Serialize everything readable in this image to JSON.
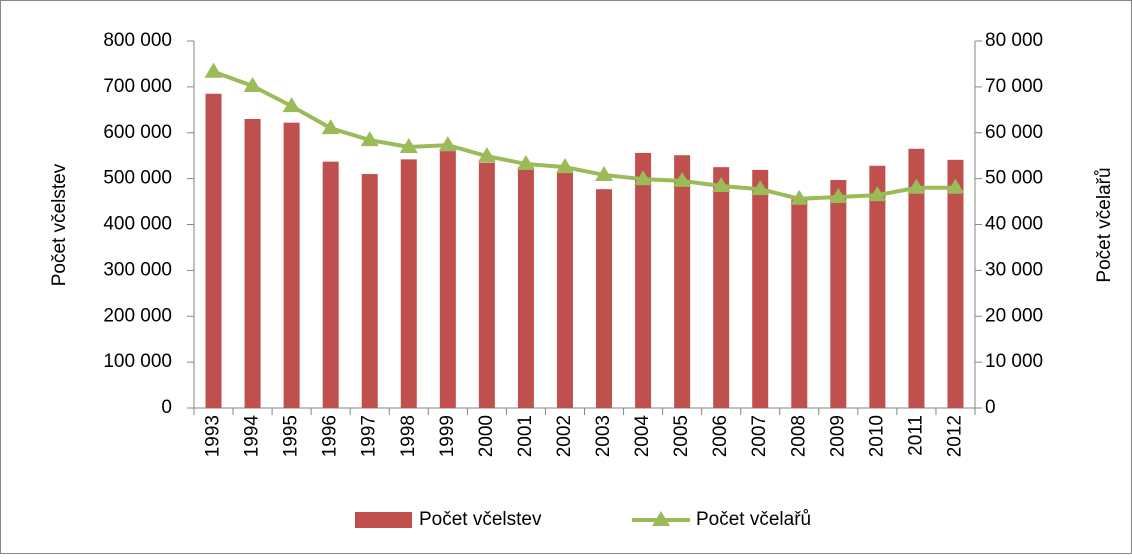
{
  "chart_data": {
    "type": "bar-line",
    "categories": [
      "1993",
      "1994",
      "1995",
      "1996",
      "1997",
      "1998",
      "1999",
      "2000",
      "2001",
      "2002",
      "2003",
      "2004",
      "2005",
      "2006",
      "2007",
      "2008",
      "2009",
      "2010",
      "2011",
      "2012"
    ],
    "series": [
      {
        "name": "Počet včelstev",
        "type": "bar",
        "color": "#c0504d",
        "axis": "y",
        "values": [
          685000,
          630000,
          622000,
          537000,
          510000,
          542000,
          560000,
          535000,
          525000,
          515000,
          477000,
          556000,
          551000,
          525000,
          519000,
          455000,
          497000,
          528000,
          565000,
          541000
        ]
      },
      {
        "name": "Počet včelařů",
        "type": "line",
        "color": "#9bbb59",
        "axis": "y2",
        "values": [
          73300,
          70200,
          65800,
          61000,
          58400,
          56900,
          57300,
          54900,
          53200,
          52500,
          50800,
          49900,
          49500,
          48400,
          47700,
          45600,
          46000,
          46400,
          48000,
          48000
        ]
      }
    ],
    "ylabel": "Počet včelstev",
    "y2label": "Počet včelařů",
    "ylim": [
      0,
      800000
    ],
    "yticks": [
      0,
      {
        "value": 100000,
        "label": "100 000"
      },
      {
        "value": 200000,
        "label": "200 000"
      },
      {
        "value": 300000,
        "label": "300 000"
      },
      {
        "value": 400000,
        "label": "400 000"
      },
      {
        "value": 500000,
        "label": "500 000"
      },
      {
        "value": 600000,
        "label": "600 000"
      },
      {
        "value": 700000,
        "label": "700 000"
      },
      {
        "value": 800000,
        "label": "800 000"
      }
    ],
    "y2lim": [
      0,
      80000
    ],
    "y2ticks": [
      0,
      {
        "value": 10000,
        "label": "10 000"
      },
      {
        "value": 20000,
        "label": "20 000"
      },
      {
        "value": 30000,
        "label": "30 000"
      },
      {
        "value": 40000,
        "label": "40 000"
      },
      {
        "value": 50000,
        "label": "50 000"
      },
      {
        "value": 60000,
        "label": "60 000"
      },
      {
        "value": 70000,
        "label": "70 000"
      },
      {
        "value": 80000,
        "label": "80 000"
      }
    ],
    "legend": "bottom"
  }
}
